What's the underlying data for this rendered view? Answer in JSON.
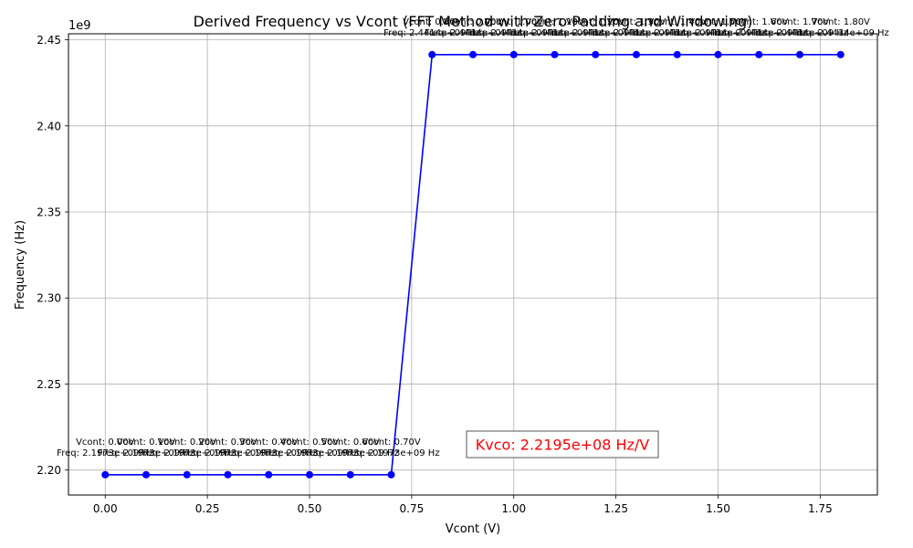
{
  "chart_data": {
    "type": "line",
    "title": "Derived Frequency vs Vcont (FFT Method with Zero Padding and Windowing)",
    "xlabel": "Vcont (V)",
    "ylabel": "Frequency (Hz)",
    "y_offset_label": "1e9",
    "xlim": [
      -0.09,
      1.89
    ],
    "ylim": [
      2185500000.0,
      2453500000.0
    ],
    "x_ticks": [
      0.0,
      0.25,
      0.5,
      0.75,
      1.0,
      1.25,
      1.5,
      1.75
    ],
    "x_tick_labels": [
      "0.00",
      "0.25",
      "0.50",
      "0.75",
      "1.00",
      "1.25",
      "1.50",
      "1.75"
    ],
    "y_ticks": [
      2200000000.0,
      2250000000.0,
      2300000000.0,
      2350000000.0,
      2400000000.0,
      2450000000.0
    ],
    "y_tick_labels": [
      "2.20",
      "2.25",
      "2.30",
      "2.35",
      "2.40",
      "2.45"
    ],
    "grid": true,
    "series": [
      {
        "color": "#0000ff",
        "x": [
          0.0,
          0.1,
          0.2,
          0.3,
          0.4,
          0.5,
          0.6,
          0.7,
          0.8,
          0.9,
          1.0,
          1.1,
          1.2,
          1.3,
          1.4,
          1.5,
          1.6,
          1.7,
          1.8
        ],
        "y": [
          2197300000.0,
          2197300000.0,
          2197300000.0,
          2197300000.0,
          2197300000.0,
          2197300000.0,
          2197300000.0,
          2197300000.0,
          2441400000.0,
          2441400000.0,
          2441400000.0,
          2441400000.0,
          2441400000.0,
          2441400000.0,
          2441400000.0,
          2441400000.0,
          2441400000.0,
          2441400000.0,
          2441400000.0
        ]
      }
    ],
    "annotations": [
      {
        "line1": "Vcont: 0.00V",
        "line2": "Freq: 2.1973e+09 Hz"
      },
      {
        "line1": "Vcont: 0.10V",
        "line2": "Freq: 2.1973e+09 Hz"
      },
      {
        "line1": "Vcont: 0.20V",
        "line2": "Freq: 2.1973e+09 Hz"
      },
      {
        "line1": "Vcont: 0.30V",
        "line2": "Freq: 2.1973e+09 Hz"
      },
      {
        "line1": "Vcont: 0.40V",
        "line2": "Freq: 2.1973e+09 Hz"
      },
      {
        "line1": "Vcont: 0.50V",
        "line2": "Freq: 2.1973e+09 Hz"
      },
      {
        "line1": "Vcont: 0.60V",
        "line2": "Freq: 2.1973e+09 Hz"
      },
      {
        "line1": "Vcont: 0.70V",
        "line2": "Freq: 2.1973e+09 Hz"
      },
      {
        "line1": "Vcont: 0.80V",
        "line2": "Freq: 2.4414e+09 Hz"
      },
      {
        "line1": "Vcont: 0.90V",
        "line2": "Freq: 2.4414e+09 Hz"
      },
      {
        "line1": "Vcont: 1.00V",
        "line2": "Freq: 2.4414e+09 Hz"
      },
      {
        "line1": "Vcont: 1.10V",
        "line2": "Freq: 2.4414e+09 Hz"
      },
      {
        "line1": "Vcont: 1.20V",
        "line2": "Freq: 2.4414e+09 Hz"
      },
      {
        "line1": "Vcont: 1.30V",
        "line2": "Freq: 2.4414e+09 Hz"
      },
      {
        "line1": "Vcont: 1.40V",
        "line2": "Freq: 2.4414e+09 Hz"
      },
      {
        "line1": "Vcont: 1.50V",
        "line2": "Freq: 2.4414e+09 Hz"
      },
      {
        "line1": "Vcont: 1.60V",
        "line2": "Freq: 2.4414e+09 Hz"
      },
      {
        "line1": "Vcont: 1.70V",
        "line2": "Freq: 2.4414e+09 Hz"
      },
      {
        "line1": "Vcont: 1.80V",
        "line2": "Freq: 2.4414e+09 Hz"
      }
    ],
    "kvco_box": {
      "text": "Kvco: 2.2195e+08 Hz/V",
      "text_color": "#ff0000"
    }
  }
}
